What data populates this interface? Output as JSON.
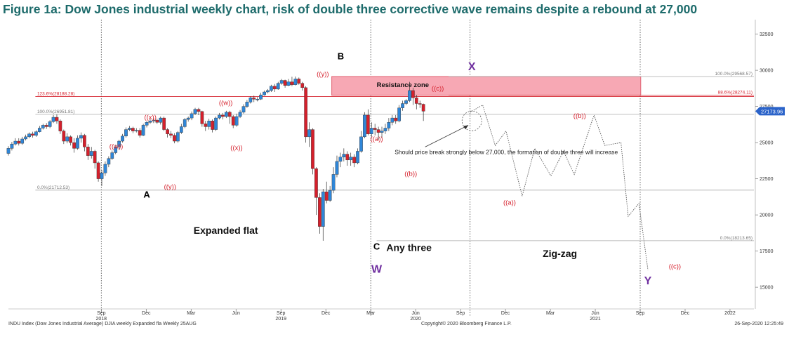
{
  "title": "Figure 1a: Dow Jones industrial weekly chart, risk of double three corrective wave remains despite a rebound at 27,000",
  "footer": {
    "left": "INDU Index (Dow Jones Industrial Average) DJIA weekly Expanded fla  Weekly 25AUG",
    "center": "Copyright© 2020 Bloomberg Finance L.P.",
    "right": "26-Sep-2020 12:25:49"
  },
  "colors": {
    "up": "#2f86d8",
    "down": "#d5202c",
    "title": "#1d6b6b",
    "wave": "#7030a0",
    "label": "#d5202c",
    "zone": "#f7a8b4"
  },
  "chart_data": {
    "type": "candlestick",
    "ylim": [
      13500,
      33500
    ],
    "yticks": [
      {
        "v": 15000,
        "label": "15000"
      },
      {
        "v": 17500,
        "label": "17500"
      },
      {
        "v": 20000,
        "label": "20000"
      },
      {
        "v": 22500,
        "label": "22500"
      },
      {
        "v": 25000,
        "label": "25000"
      },
      {
        "v": 27500,
        "label": "27500"
      },
      {
        "v": 30000,
        "label": "30000"
      },
      {
        "v": 32500,
        "label": "32500"
      }
    ],
    "last_price": "27173.96",
    "xticks": [
      {
        "d": 2018.667,
        "label": "Sep",
        "year": "2018"
      },
      {
        "d": 2018.917,
        "label": "Dec"
      },
      {
        "d": 2019.167,
        "label": "Mar"
      },
      {
        "d": 2019.417,
        "label": "Jun"
      },
      {
        "d": 2019.667,
        "label": "Sep",
        "year": "2019"
      },
      {
        "d": 2019.917,
        "label": "Dec"
      },
      {
        "d": 2020.167,
        "label": "Mar"
      },
      {
        "d": 2020.417,
        "label": "Jun",
        "year": "2020"
      },
      {
        "d": 2020.667,
        "label": "Sep"
      },
      {
        "d": 2020.917,
        "label": "Dec"
      },
      {
        "d": 2021.167,
        "label": "Mar"
      },
      {
        "d": 2021.417,
        "label": "Jun",
        "year": "2021"
      },
      {
        "d": 2021.667,
        "label": "Sep"
      },
      {
        "d": 2021.917,
        "label": "Dec"
      },
      {
        "d": 2022.167,
        "label": "2022"
      }
    ],
    "vlines": [
      2018.667,
      2020.167,
      2020.72,
      2021.667
    ],
    "hlines": [
      {
        "v": 29568.57,
        "label": "100.0%(29568.57)",
        "side": "right",
        "color": "#aaaaaa"
      },
      {
        "v": 28274.11,
        "label": "88.6%(28274.11)",
        "side": "right",
        "color": "#d5202c"
      },
      {
        "v": 28188.28,
        "label": "123.6%(28188.28)",
        "side": "left",
        "color": "#d5202c"
      },
      {
        "v": 26951.81,
        "label": "100.0%(26951.81)",
        "side": "left",
        "color": "#aaaaaa"
      },
      {
        "v": 21712.53,
        "label": "0.0%(21712.53)",
        "side": "left",
        "color": "#aaaaaa"
      },
      {
        "v": 18213.65,
        "label": "0.0%(18213.65)",
        "side": "right",
        "color": "#aaaaaa"
      }
    ],
    "resistance_zone": {
      "label": "Resistance zone",
      "d0": 2019.95,
      "d1": 2021.67,
      "v0": 28274,
      "v1": 29568
    },
    "candles": [
      {
        "o": 24250,
        "c": 24600,
        "h": 24750,
        "l": 24100
      },
      {
        "o": 24600,
        "c": 24900,
        "h": 25050,
        "l": 24450
      },
      {
        "o": 24900,
        "c": 25100,
        "h": 25300,
        "l": 24800
      },
      {
        "o": 25100,
        "c": 24950,
        "h": 25300,
        "l": 24800
      },
      {
        "o": 24950,
        "c": 25250,
        "h": 25400,
        "l": 24850
      },
      {
        "o": 25250,
        "c": 25400,
        "h": 25550,
        "l": 25150
      },
      {
        "o": 25400,
        "c": 25600,
        "h": 25700,
        "l": 25300
      },
      {
        "o": 25600,
        "c": 25500,
        "h": 25750,
        "l": 25350
      },
      {
        "o": 25500,
        "c": 25750,
        "h": 25850,
        "l": 25400
      },
      {
        "o": 25750,
        "c": 26000,
        "h": 26150,
        "l": 25700
      },
      {
        "o": 26000,
        "c": 26200,
        "h": 26300,
        "l": 25900
      },
      {
        "o": 26200,
        "c": 26100,
        "h": 26350,
        "l": 25950
      },
      {
        "o": 26100,
        "c": 26450,
        "h": 26550,
        "l": 26000
      },
      {
        "o": 26450,
        "c": 26750,
        "h": 26900,
        "l": 26350
      },
      {
        "o": 26750,
        "c": 26500,
        "h": 26950,
        "l": 26300
      },
      {
        "o": 26500,
        "c": 25800,
        "h": 26600,
        "l": 25600
      },
      {
        "o": 25800,
        "c": 25100,
        "h": 25900,
        "l": 24900
      },
      {
        "o": 25100,
        "c": 25400,
        "h": 25650,
        "l": 24950
      },
      {
        "o": 25400,
        "c": 25000,
        "h": 25500,
        "l": 24800
      },
      {
        "o": 25000,
        "c": 24600,
        "h": 25300,
        "l": 24300
      },
      {
        "o": 24600,
        "c": 25300,
        "h": 25500,
        "l": 24500
      },
      {
        "o": 25300,
        "c": 25500,
        "h": 25700,
        "l": 25000
      },
      {
        "o": 25500,
        "c": 24700,
        "h": 25600,
        "l": 24400
      },
      {
        "o": 24700,
        "c": 24100,
        "h": 24900,
        "l": 23800
      },
      {
        "o": 24100,
        "c": 24400,
        "h": 24700,
        "l": 23900
      },
      {
        "o": 24400,
        "c": 23600,
        "h": 24500,
        "l": 23200
      },
      {
        "o": 23600,
        "c": 22500,
        "h": 23700,
        "l": 22300
      },
      {
        "o": 22500,
        "c": 22900,
        "h": 23100,
        "l": 22000
      },
      {
        "o": 22900,
        "c": 23500,
        "h": 23700,
        "l": 22700
      },
      {
        "o": 23500,
        "c": 23900,
        "h": 24050,
        "l": 23300
      },
      {
        "o": 23900,
        "c": 24300,
        "h": 24450,
        "l": 23800
      },
      {
        "o": 24300,
        "c": 24700,
        "h": 24850,
        "l": 24200
      },
      {
        "o": 24700,
        "c": 25100,
        "h": 25200,
        "l": 24500
      },
      {
        "o": 25100,
        "c": 25450,
        "h": 25600,
        "l": 25000
      },
      {
        "o": 25450,
        "c": 25900,
        "h": 26050,
        "l": 25350
      },
      {
        "o": 25900,
        "c": 26000,
        "h": 26150,
        "l": 25800
      },
      {
        "o": 26000,
        "c": 25800,
        "h": 26100,
        "l": 25650
      },
      {
        "o": 25800,
        "c": 25850,
        "h": 26000,
        "l": 25700
      },
      {
        "o": 25850,
        "c": 25500,
        "h": 26000,
        "l": 25350
      },
      {
        "o": 25500,
        "c": 26200,
        "h": 26300,
        "l": 25450
      },
      {
        "o": 26200,
        "c": 26400,
        "h": 26500,
        "l": 26050
      },
      {
        "o": 26400,
        "c": 26500,
        "h": 26650,
        "l": 26300
      },
      {
        "o": 26500,
        "c": 26550,
        "h": 26700,
        "l": 26350
      },
      {
        "o": 26550,
        "c": 26400,
        "h": 26650,
        "l": 26300
      },
      {
        "o": 26400,
        "c": 26700,
        "h": 26800,
        "l": 26250
      },
      {
        "o": 26700,
        "c": 25900,
        "h": 26800,
        "l": 25800
      },
      {
        "o": 25900,
        "c": 25600,
        "h": 26000,
        "l": 25350
      },
      {
        "o": 25600,
        "c": 25500,
        "h": 25800,
        "l": 25300
      },
      {
        "o": 25500,
        "c": 25100,
        "h": 25650,
        "l": 24950
      },
      {
        "o": 25100,
        "c": 25700,
        "h": 25800,
        "l": 25000
      },
      {
        "o": 25700,
        "c": 26100,
        "h": 26300,
        "l": 25600
      },
      {
        "o": 26100,
        "c": 26600,
        "h": 26700,
        "l": 26000
      },
      {
        "o": 26600,
        "c": 26700,
        "h": 26800,
        "l": 26450
      },
      {
        "o": 26700,
        "c": 27000,
        "h": 27150,
        "l": 26550
      },
      {
        "o": 27000,
        "c": 27300,
        "h": 27400,
        "l": 26900
      },
      {
        "o": 27300,
        "c": 27150,
        "h": 27400,
        "l": 26900
      },
      {
        "o": 27150,
        "c": 26300,
        "h": 27200,
        "l": 26100
      },
      {
        "o": 26300,
        "c": 26100,
        "h": 26500,
        "l": 25800
      },
      {
        "o": 26100,
        "c": 26500,
        "h": 26650,
        "l": 25900
      },
      {
        "o": 26500,
        "c": 25900,
        "h": 26600,
        "l": 25700
      },
      {
        "o": 25900,
        "c": 26700,
        "h": 26800,
        "l": 25800
      },
      {
        "o": 26700,
        "c": 26900,
        "h": 27050,
        "l": 26600
      },
      {
        "o": 26900,
        "c": 26800,
        "h": 27050,
        "l": 26600
      },
      {
        "o": 26800,
        "c": 27100,
        "h": 27200,
        "l": 26700
      },
      {
        "o": 27100,
        "c": 26800,
        "h": 27200,
        "l": 26300
      },
      {
        "o": 26800,
        "c": 26200,
        "h": 26900,
        "l": 26000
      },
      {
        "o": 26200,
        "c": 26800,
        "h": 27000,
        "l": 26100
      },
      {
        "o": 26800,
        "c": 27100,
        "h": 27250,
        "l": 26700
      },
      {
        "o": 27100,
        "c": 27500,
        "h": 27650,
        "l": 27000
      },
      {
        "o": 27500,
        "c": 27800,
        "h": 27950,
        "l": 27400
      },
      {
        "o": 27800,
        "c": 28100,
        "h": 28200,
        "l": 27700
      },
      {
        "o": 28100,
        "c": 28000,
        "h": 28250,
        "l": 27800
      },
      {
        "o": 28000,
        "c": 28000,
        "h": 28150,
        "l": 27850
      },
      {
        "o": 28000,
        "c": 28300,
        "h": 28450,
        "l": 27950
      },
      {
        "o": 28300,
        "c": 28500,
        "h": 28600,
        "l": 28250
      },
      {
        "o": 28500,
        "c": 28600,
        "h": 28700,
        "l": 28400
      },
      {
        "o": 28600,
        "c": 28900,
        "h": 29000,
        "l": 28500
      },
      {
        "o": 28900,
        "c": 28700,
        "h": 29050,
        "l": 28500
      },
      {
        "o": 28700,
        "c": 29100,
        "h": 29200,
        "l": 28650
      },
      {
        "o": 29100,
        "c": 29300,
        "h": 29400,
        "l": 29000
      },
      {
        "o": 29300,
        "c": 28950,
        "h": 29350,
        "l": 28800
      },
      {
        "o": 28950,
        "c": 29200,
        "h": 29400,
        "l": 28900
      },
      {
        "o": 29200,
        "c": 29000,
        "h": 29550,
        "l": 28900
      },
      {
        "o": 29000,
        "c": 29400,
        "h": 29570,
        "l": 28950
      },
      {
        "o": 29400,
        "c": 29100,
        "h": 29500,
        "l": 29000
      },
      {
        "o": 29100,
        "c": 28800,
        "h": 29200,
        "l": 28600
      },
      {
        "o": 28800,
        "c": 25400,
        "h": 28900,
        "l": 25000
      },
      {
        "o": 25400,
        "c": 25900,
        "h": 26400,
        "l": 24700
      },
      {
        "o": 25900,
        "c": 23200,
        "h": 26000,
        "l": 22800
      },
      {
        "o": 23200,
        "c": 21200,
        "h": 23300,
        "l": 20000
      },
      {
        "o": 21200,
        "c": 19200,
        "h": 21500,
        "l": 18700
      },
      {
        "o": 19200,
        "c": 21600,
        "h": 21800,
        "l": 18213
      },
      {
        "o": 21600,
        "c": 21000,
        "h": 22300,
        "l": 20800
      },
      {
        "o": 21000,
        "c": 21700,
        "h": 22000,
        "l": 20900
      },
      {
        "o": 21700,
        "c": 22800,
        "h": 23300,
        "l": 21500
      },
      {
        "o": 22800,
        "c": 23700,
        "h": 24100,
        "l": 22600
      },
      {
        "o": 23700,
        "c": 24000,
        "h": 24300,
        "l": 23300
      },
      {
        "o": 24000,
        "c": 24200,
        "h": 24600,
        "l": 23700
      },
      {
        "o": 24200,
        "c": 23800,
        "h": 24400,
        "l": 23400
      },
      {
        "o": 23800,
        "c": 24000,
        "h": 24300,
        "l": 23400
      },
      {
        "o": 24000,
        "c": 23600,
        "h": 24200,
        "l": 23300
      },
      {
        "o": 23600,
        "c": 24400,
        "h": 24600,
        "l": 23500
      },
      {
        "o": 24400,
        "c": 25400,
        "h": 25800,
        "l": 24300
      },
      {
        "o": 25400,
        "c": 26900,
        "h": 27100,
        "l": 25300
      },
      {
        "o": 26900,
        "c": 25600,
        "h": 27300,
        "l": 25500
      },
      {
        "o": 25600,
        "c": 26000,
        "h": 26400,
        "l": 25400
      },
      {
        "o": 26000,
        "c": 25900,
        "h": 26300,
        "l": 25500
      },
      {
        "o": 25900,
        "c": 25700,
        "h": 26100,
        "l": 25200
      },
      {
        "o": 25700,
        "c": 25800,
        "h": 26100,
        "l": 25300
      },
      {
        "o": 25800,
        "c": 26000,
        "h": 26300,
        "l": 25600
      },
      {
        "o": 26000,
        "c": 26400,
        "h": 26700,
        "l": 25800
      },
      {
        "o": 26400,
        "c": 26700,
        "h": 26900,
        "l": 26200
      },
      {
        "o": 26700,
        "c": 26500,
        "h": 26900,
        "l": 26300
      },
      {
        "o": 26500,
        "c": 27400,
        "h": 27600,
        "l": 26400
      },
      {
        "o": 27400,
        "c": 27700,
        "h": 27900,
        "l": 27200
      },
      {
        "o": 27700,
        "c": 27900,
        "h": 28000,
        "l": 27600
      },
      {
        "o": 27900,
        "c": 28600,
        "h": 29200,
        "l": 27800
      },
      {
        "o": 28600,
        "c": 28100,
        "h": 28800,
        "l": 27600
      },
      {
        "o": 28100,
        "c": 27700,
        "h": 28300,
        "l": 27300
      },
      {
        "o": 27700,
        "c": 27650,
        "h": 27900,
        "l": 27400
      },
      {
        "o": 27650,
        "c": 27170,
        "h": 27700,
        "l": 26500
      }
    ],
    "candle_start": 2018.15,
    "candle_step": 0.01925,
    "projection": [
      [
        2020.72,
        27100
      ],
      [
        2020.79,
        27600
      ],
      [
        2020.86,
        24800
      ],
      [
        2020.92,
        25800
      ],
      [
        2021.01,
        21300
      ],
      [
        2021.08,
        24600
      ],
      [
        2021.17,
        22700
      ],
      [
        2021.24,
        24400
      ],
      [
        2021.3,
        22800
      ],
      [
        2021.41,
        26900
      ],
      [
        2021.47,
        24800
      ],
      [
        2021.56,
        25000
      ],
      [
        2021.6,
        19900
      ],
      [
        2021.66,
        20800
      ],
      [
        2021.71,
        16200
      ]
    ],
    "wave_labels": [
      {
        "text": "B",
        "d": 2020.0,
        "v": 30750,
        "color": "#000000",
        "bold": true,
        "size": 13
      },
      {
        "text": "A",
        "d": 2018.92,
        "v": 21200,
        "color": "#000000",
        "bold": true,
        "size": 13
      },
      {
        "text": "C",
        "d": 2020.2,
        "v": 17600,
        "color": "#000000",
        "bold": true,
        "size": 13
      },
      {
        "text": "W",
        "d": 2020.2,
        "v": 16000,
        "color": "#7030a0",
        "bold": true,
        "size": 16
      },
      {
        "text": "X",
        "d": 2020.73,
        "v": 30000,
        "color": "#7030a0",
        "bold": true,
        "size": 16
      },
      {
        "text": "Y",
        "d": 2021.71,
        "v": 15200,
        "color": "#7030a0",
        "bold": true,
        "size": 16
      },
      {
        "text": "((w))",
        "d": 2018.75,
        "v": 24600,
        "color": "#d5202c",
        "size": 9.5
      },
      {
        "text": "((x))",
        "d": 2018.94,
        "v": 26600,
        "color": "#d5202c",
        "size": 9.5
      },
      {
        "text": "((y))",
        "d": 2019.05,
        "v": 21800,
        "color": "#d5202c",
        "size": 9.5
      },
      {
        "text": "((w))",
        "d": 2019.36,
        "v": 27600,
        "color": "#d5202c",
        "size": 9.5
      },
      {
        "text": "((x))",
        "d": 2019.42,
        "v": 24500,
        "color": "#d5202c",
        "size": 9.5
      },
      {
        "text": "((y))",
        "d": 2019.9,
        "v": 29600,
        "color": "#d5202c",
        "size": 9.5
      },
      {
        "text": "((a))",
        "d": 2020.2,
        "v": 25100,
        "color": "#d5202c",
        "size": 9.5
      },
      {
        "text": "((b))",
        "d": 2020.39,
        "v": 22700,
        "color": "#d5202c",
        "size": 9.5
      },
      {
        "text": "((c))",
        "d": 2020.54,
        "v": 28600,
        "color": "#d5202c",
        "size": 9.5
      },
      {
        "text": "((a))",
        "d": 2020.94,
        "v": 20700,
        "color": "#d5202c",
        "size": 9.5
      },
      {
        "text": "((b))",
        "d": 2021.33,
        "v": 26700,
        "color": "#d5202c",
        "size": 9.5
      },
      {
        "text": "((c))",
        "d": 2021.86,
        "v": 16300,
        "color": "#d5202c",
        "size": 9.5
      }
    ],
    "text_labels": [
      {
        "text": "Expanded flat",
        "d": 2019.36,
        "v": 18700,
        "size": 14
      },
      {
        "text": "Any three",
        "d": 2020.38,
        "v": 17500,
        "size": 14
      },
      {
        "text": "Zig-zag",
        "d": 2021.22,
        "v": 17100,
        "size": 14
      }
    ],
    "annotation": {
      "text": "Should price break strongly below 27,000, the formation of double three will increase",
      "d": 2020.3,
      "v": 24200,
      "arrow_to_d": 2020.71,
      "arrow_to_v": 26200,
      "circle_d": 2020.73,
      "circle_v": 26500
    }
  }
}
